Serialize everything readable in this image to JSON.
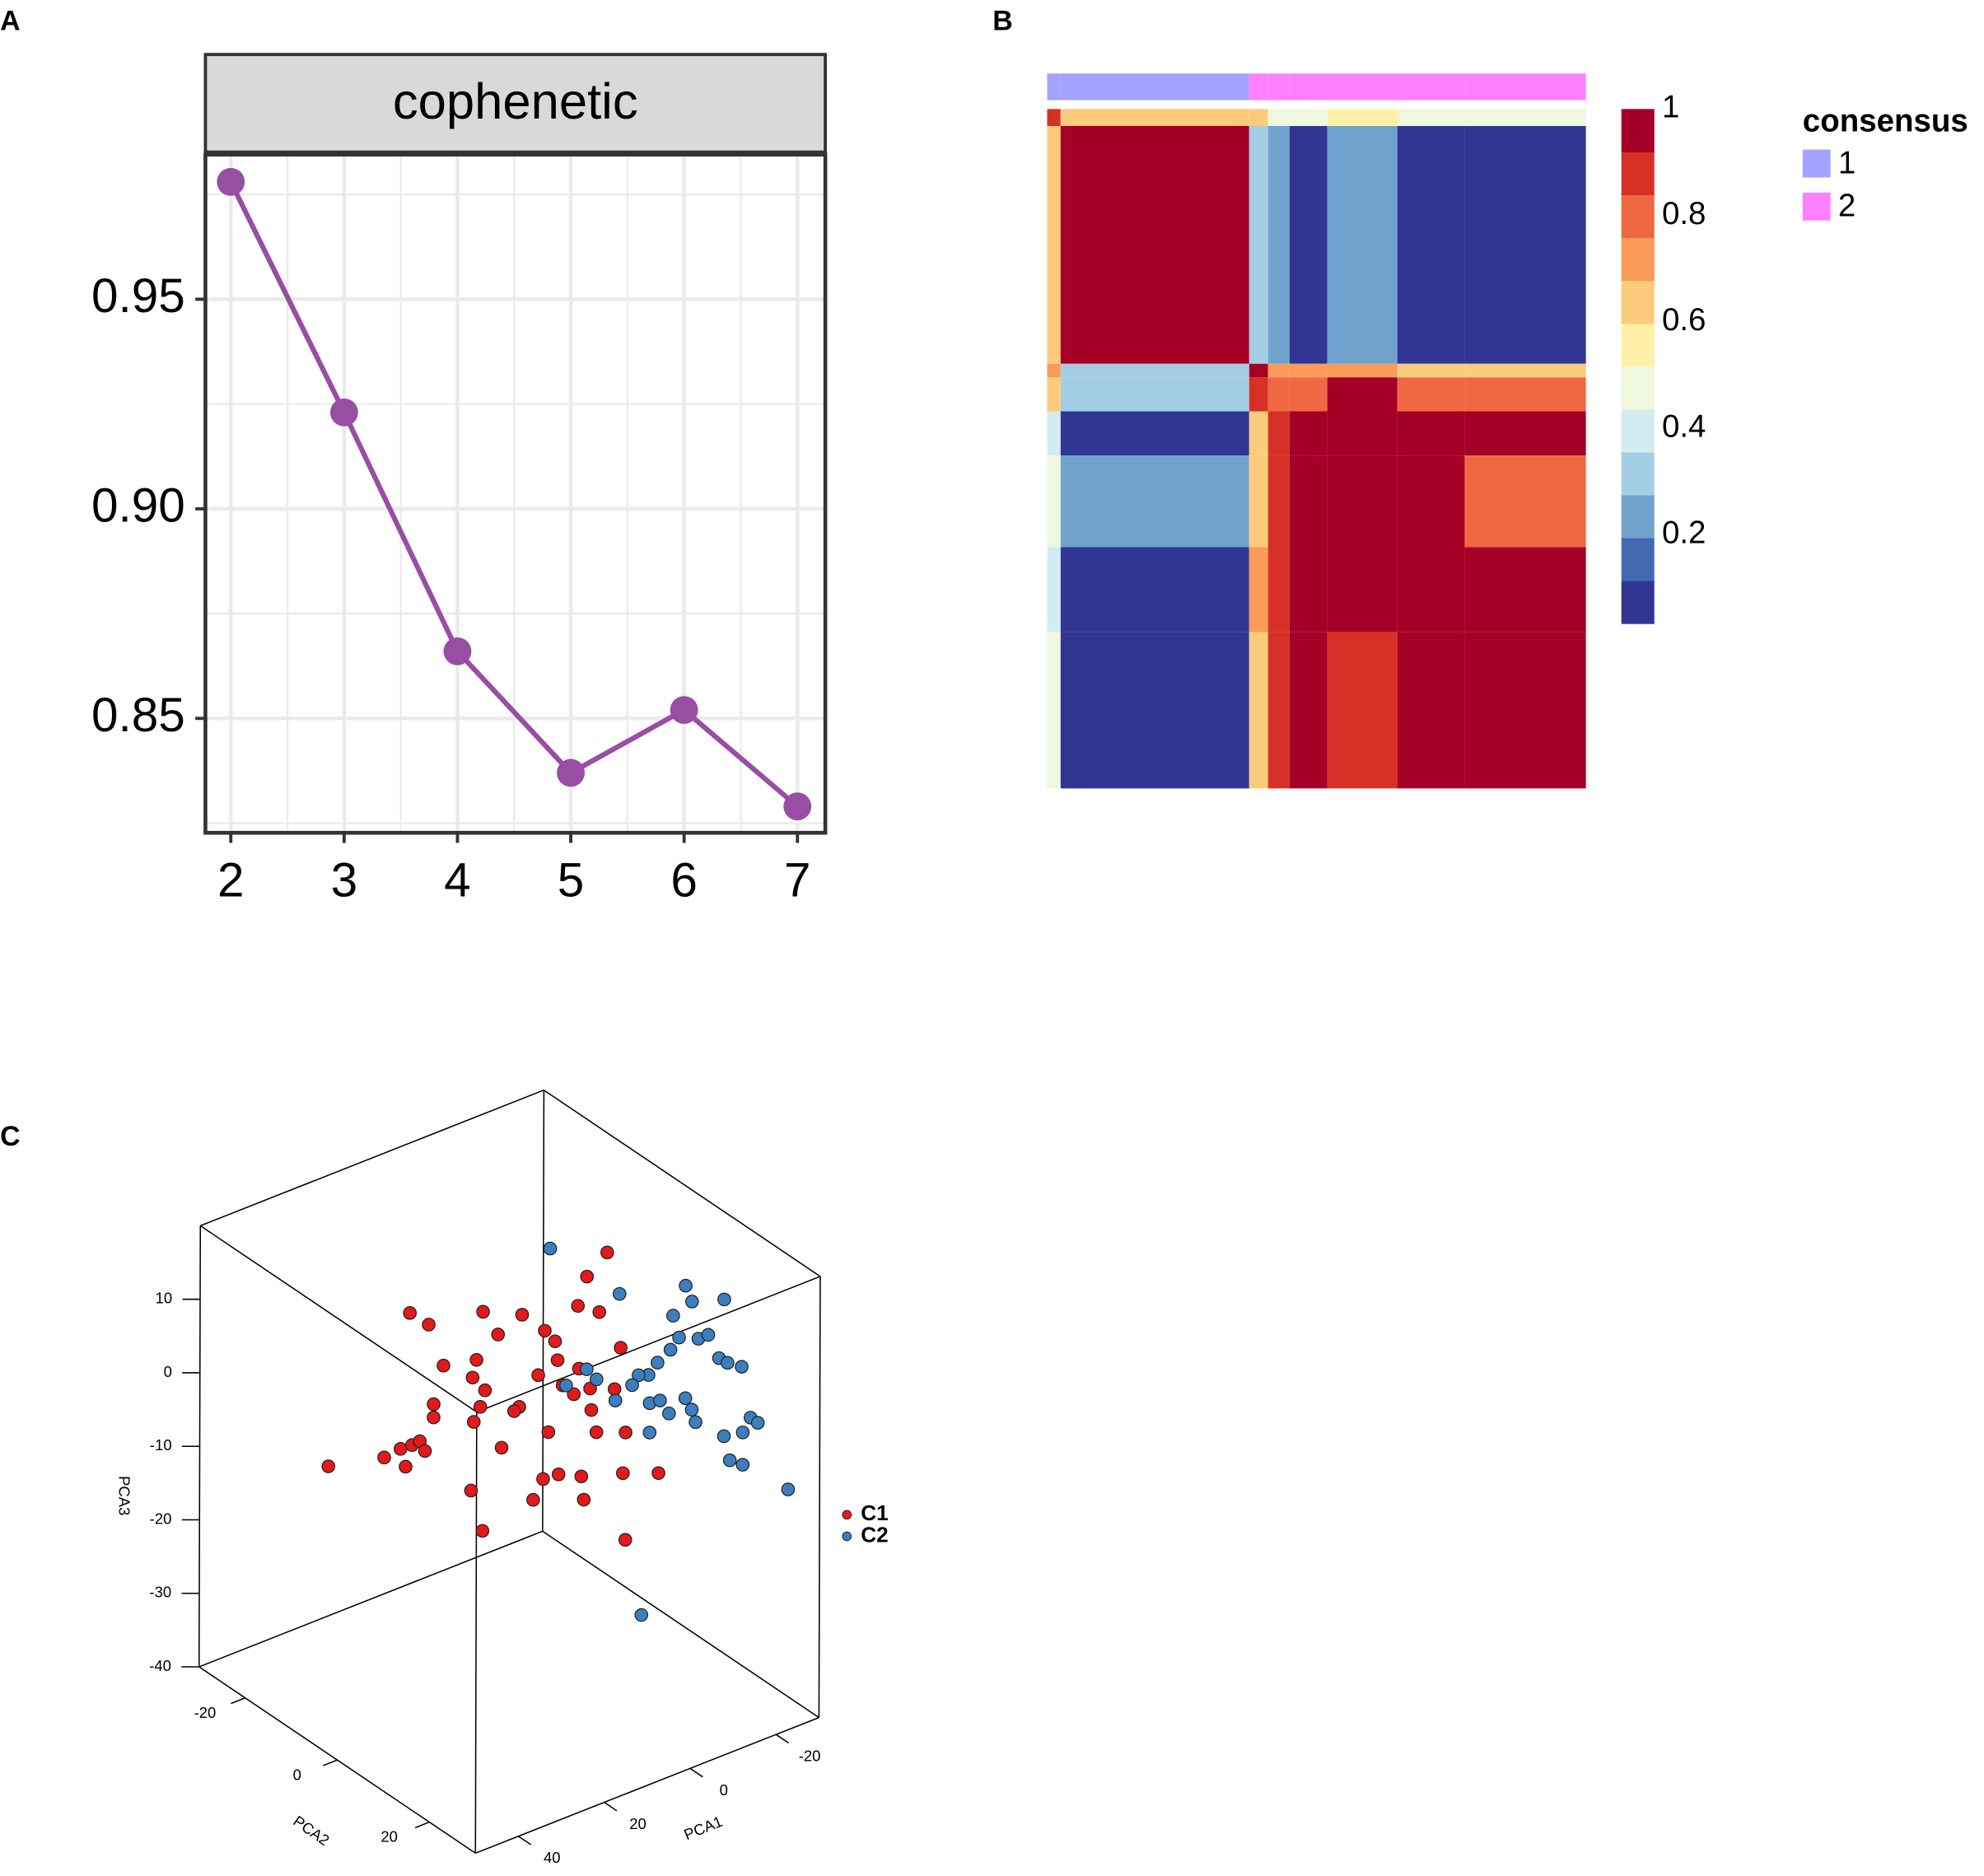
{
  "chart_data": [
    {
      "panel": "A",
      "type": "line",
      "strip_title": "cophenetic",
      "x": [
        2,
        3,
        4,
        5,
        6,
        7
      ],
      "values": [
        0.978,
        0.923,
        0.866,
        0.837,
        0.852,
        0.829
      ],
      "color": "#984ea3",
      "xlim": [
        1.776,
        7.246
      ],
      "xticks": [
        2,
        3,
        4,
        5,
        6,
        7
      ],
      "ylim": [
        0.8227,
        0.9845
      ],
      "yticks": [
        0.85,
        {
          "value": 0.9,
          "label": "0.90"
        },
        0.95
      ],
      "grid": true,
      "minor_grid": true
    },
    {
      "panel": "B",
      "type": "heatmap",
      "row_sizes": [
        5,
        70,
        4,
        10,
        13,
        27,
        25,
        46
      ],
      "col_sizes": [
        5,
        70,
        7,
        8,
        14,
        26,
        25,
        45
      ],
      "values": [
        [
          0.9,
          0.6,
          0.6,
          0.5,
          0.45,
          0.55,
          0.45,
          0.45
        ],
        [
          0.65,
          1,
          0.35,
          0.25,
          0.05,
          0.2,
          0.05,
          0.05
        ],
        [
          0.7,
          0.3,
          0.95,
          0.7,
          0.7,
          0.7,
          0.65,
          0.65
        ],
        [
          0.6,
          0.3,
          0.88,
          0.8,
          0.8,
          0.95,
          0.8,
          0.8
        ],
        [
          0.4,
          0.05,
          0.65,
          0.88,
          1,
          1,
          1,
          1
        ],
        [
          0.5,
          0.2,
          0.65,
          0.88,
          1,
          1,
          1,
          0.8
        ],
        [
          0.4,
          0.05,
          0.7,
          0.88,
          1,
          1,
          1,
          1
        ],
        [
          0.45,
          0.05,
          0.65,
          0.88,
          1,
          0.88,
          1,
          1
        ]
      ],
      "annotation": {
        "title": "consensus",
        "labels": [
          "1",
          "2"
        ],
        "colors": [
          "#a3a3ff",
          "#ff80ff"
        ],
        "col_class": [
          1,
          1,
          2,
          2,
          2,
          2,
          2,
          2
        ]
      },
      "colorbar": {
        "colors": [
          "#313695",
          "#4469b1",
          "#6fa3cd",
          "#a4cee3",
          "#d3ecf2",
          "#eff7df",
          "#fff0a8",
          "#fdcb7c",
          "#fa9b58",
          "#ef6842",
          "#d73027",
          "#a50026"
        ],
        "lim": [
          0.033,
          1
        ],
        "ticks": [
          1,
          0.8,
          0.6,
          0.4,
          0.2
        ]
      }
    },
    {
      "panel": "C",
      "type": "scatter3d",
      "xlabel": "PCA1",
      "ylabel": "PCA2",
      "zlabel": "PCA3",
      "xlim": [
        -30,
        50
      ],
      "xreverse": true,
      "ylim": [
        -30,
        30
      ],
      "zlim": [
        -40,
        20
      ],
      "xticks": [
        -20,
        0,
        20,
        40
      ],
      "yticks": [
        -20,
        0,
        20
      ],
      "zticks": [
        -40,
        -30,
        -20,
        -10,
        0,
        10
      ],
      "series": [
        {
          "name": "C1",
          "color": "#e3191c",
          "x": [
            32.9,
            19.9,
            16.1,
            14.9,
            13.4,
            11.6,
            10.4,
            14.0,
            9.6,
            8.4,
            8.4,
            25.5,
            17.8,
            18.7,
            16.9,
            18.4,
            16.3,
            12.8,
            15.8,
            11.9,
            19.0,
            16.3,
            7.2,
            7.8,
            3.4,
            1.9,
            -0.5,
            -1.1,
            1.0,
            -1.4,
            2.2,
            4.5,
            -2.3,
            -6.1,
            -6.7,
            -7.3,
            -7.9,
            -8.7,
            -10.8,
            -12.6,
            -10.2,
            -14.4,
            -15.8,
            -17.0,
            -16.4,
            -17.0,
            -24.7,
            -4.9,
            -9.0,
            9.0,
            -5.8
          ],
          "y": [
            -18,
            -18,
            -18,
            -18,
            -18,
            -18,
            -18,
            -18,
            -18,
            -18,
            -18,
            0,
            0,
            0,
            0,
            0,
            0,
            0,
            0,
            0,
            0,
            0,
            0,
            0,
            0,
            0,
            0,
            0,
            0,
            0,
            0,
            0,
            0,
            0,
            0,
            0,
            0,
            0,
            0,
            0,
            0,
            0,
            0,
            0,
            0,
            0,
            0,
            0,
            0,
            0,
            0
          ],
          "z": [
            -11.6,
            -13.4,
            -13.1,
            -15.8,
            -13.2,
            -13.1,
            -14.7,
            4.9,
            2.3,
            -8.8,
            -10.6,
            8.0,
            7.0,
            4.8,
            0.4,
            -1.3,
            13.2,
            9.3,
            2.4,
            -6.3,
            -10.5,
            -16.6,
            10.7,
            -1.7,
            1.6,
            7.3,
            5.3,
            2.6,
            -6.7,
            -13.0,
            -12.8,
            -15.1,
            -1.1,
            0.3,
            -14.5,
            -17.8,
            12.4,
            -3.0,
            6.9,
            14.6,
            -9.3,
            -4.4,
            0.9,
            -10.9,
            -16.3,
            -25.5,
            -18.2,
            -2.9,
            -6.0,
            -2.0,
            8.9
          ]
        },
        {
          "name": "C2",
          "color": "#3b7fc0",
          "x": [
            0.7,
            -15.5,
            -24.4,
            -22.3,
            -20.0,
            -18.5,
            -14.6,
            -22.6,
            -25.0,
            -22.6,
            -20.8,
            -3.1,
            -7.9,
            -10.2,
            -18.0,
            -19.5,
            -15.1,
            -16.5,
            -21.0,
            -14.5,
            -18.0,
            -19.5,
            -20.4,
            -23.3,
            -14.2,
            -14.1,
            -12.9,
            -14.9,
            -18.2,
            -14.1,
            -18.5,
            -20.3,
            -22.0,
            -15.5,
            -18.5,
            -29.1
          ],
          "y": [
            0,
            0,
            0,
            0,
            0,
            0,
            0,
            0,
            0,
            0,
            0,
            0,
            0,
            0,
            12,
            12,
            12,
            12,
            12,
            12,
            12,
            12,
            12,
            12,
            12,
            24,
            24,
            24,
            24,
            24,
            24,
            24,
            24,
            24,
            24,
            24
          ],
          "z": [
            18.2,
            8.3,
            -3.1,
            -4.3,
            -3.8,
            -4.8,
            -6.0,
            -8.2,
            -8.4,
            -12.2,
            -36.6,
            -1.3,
            -0.2,
            -2.1,
            13.9,
            11.4,
            10.5,
            7.2,
            6.0,
            6.0,
            -1.4,
            -3.3,
            -5.2,
            6.0,
            -2.6,
            18.0,
            10.3,
            9.2,
            7.9,
            -0.6,
            -1.1,
            0.5,
            -0.6,
            -4.2,
            -5.5,
            -11.3
          ]
        }
      ]
    }
  ]
}
